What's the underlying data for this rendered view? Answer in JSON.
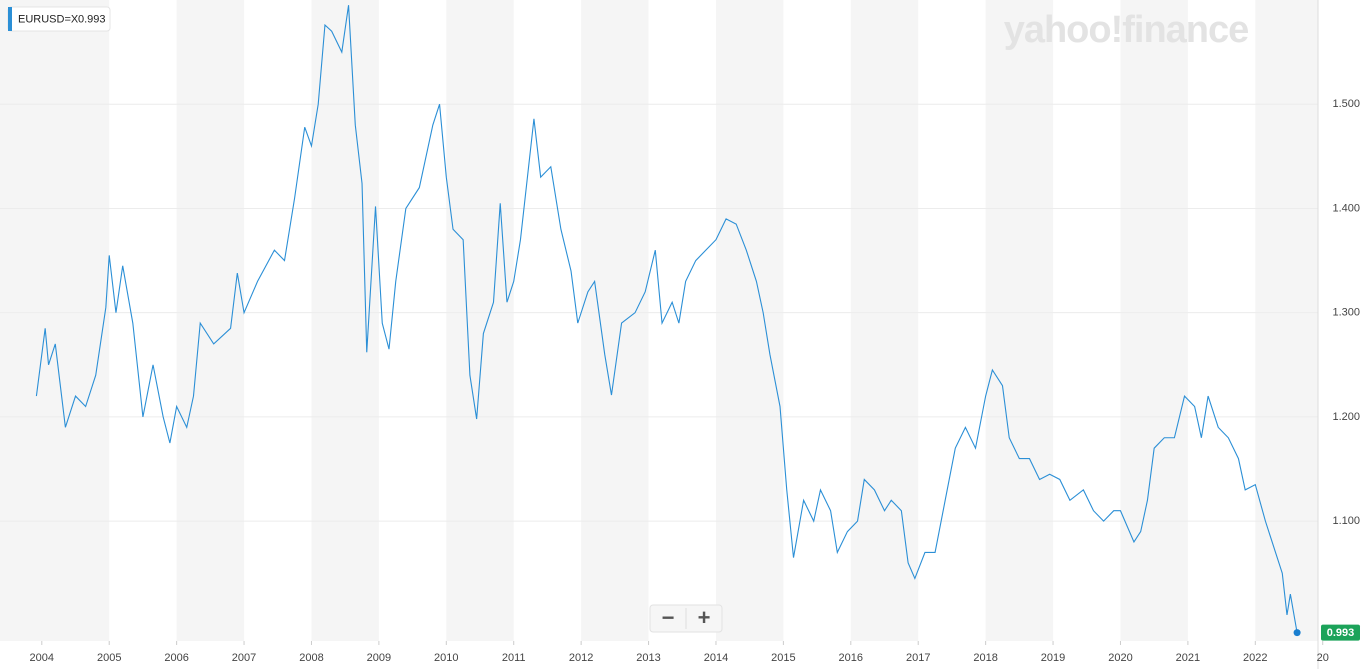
{
  "chart_data": {
    "type": "line",
    "watermark": "yahoo!finance",
    "zoom_controls": [
      "−",
      "+"
    ],
    "x": [
      2003.92,
      2004.05,
      2004.1,
      2004.2,
      2004.35,
      2004.5,
      2004.65,
      2004.8,
      2004.95,
      2005.0,
      2005.1,
      2005.2,
      2005.35,
      2005.5,
      2005.65,
      2005.8,
      2005.9,
      2006.0,
      2006.15,
      2006.25,
      2006.35,
      2006.55,
      2006.8,
      2006.9,
      2007.0,
      2007.2,
      2007.45,
      2007.6,
      2007.75,
      2007.9,
      2008.0,
      2008.1,
      2008.2,
      2008.3,
      2008.45,
      2008.55,
      2008.65,
      2008.75,
      2008.82,
      2008.95,
      2009.05,
      2009.15,
      2009.25,
      2009.4,
      2009.6,
      2009.8,
      2009.9,
      2010.0,
      2010.1,
      2010.25,
      2010.35,
      2010.45,
      2010.55,
      2010.7,
      2010.8,
      2010.9,
      2011.0,
      2011.1,
      2011.3,
      2011.4,
      2011.55,
      2011.7,
      2011.85,
      2011.95,
      2012.1,
      2012.2,
      2012.35,
      2012.45,
      2012.6,
      2012.8,
      2012.95,
      2013.1,
      2013.2,
      2013.35,
      2013.45,
      2013.55,
      2013.7,
      2013.85,
      2014.0,
      2014.15,
      2014.3,
      2014.45,
      2014.6,
      2014.7,
      2014.8,
      2014.95,
      2015.05,
      2015.15,
      2015.3,
      2015.45,
      2015.55,
      2015.7,
      2015.8,
      2015.95,
      2016.1,
      2016.2,
      2016.35,
      2016.5,
      2016.6,
      2016.75,
      2016.85,
      2016.95,
      2017.1,
      2017.25,
      2017.4,
      2017.55,
      2017.7,
      2017.85,
      2018.0,
      2018.1,
      2018.25,
      2018.35,
      2018.5,
      2018.65,
      2018.8,
      2018.95,
      2019.1,
      2019.25,
      2019.45,
      2019.6,
      2019.75,
      2019.9,
      2020.0,
      2020.2,
      2020.3,
      2020.4,
      2020.5,
      2020.65,
      2020.8,
      2020.95,
      2021.1,
      2021.2,
      2021.3,
      2021.45,
      2021.6,
      2021.75,
      2021.85,
      2022.0,
      2022.15,
      2022.3,
      2022.4,
      2022.47,
      2022.52,
      2022.62
    ],
    "series": [
      {
        "name": "EURUSD=X",
        "color": "#2b8fd6",
        "values": [
          1.22,
          1.285,
          1.25,
          1.27,
          1.19,
          1.22,
          1.21,
          1.24,
          1.305,
          1.355,
          1.3,
          1.345,
          1.29,
          1.2,
          1.25,
          1.2,
          1.175,
          1.21,
          1.19,
          1.22,
          1.29,
          1.27,
          1.285,
          1.338,
          1.3,
          1.33,
          1.36,
          1.35,
          1.41,
          1.478,
          1.46,
          1.5,
          1.576,
          1.57,
          1.55,
          1.595,
          1.48,
          1.424,
          1.262,
          1.402,
          1.29,
          1.265,
          1.33,
          1.4,
          1.42,
          1.48,
          1.5,
          1.43,
          1.38,
          1.37,
          1.24,
          1.198,
          1.28,
          1.31,
          1.405,
          1.31,
          1.33,
          1.37,
          1.486,
          1.43,
          1.44,
          1.38,
          1.34,
          1.29,
          1.32,
          1.33,
          1.26,
          1.221,
          1.29,
          1.3,
          1.32,
          1.36,
          1.29,
          1.31,
          1.29,
          1.33,
          1.35,
          1.36,
          1.37,
          1.39,
          1.385,
          1.36,
          1.33,
          1.3,
          1.26,
          1.21,
          1.13,
          1.065,
          1.12,
          1.1,
          1.13,
          1.11,
          1.07,
          1.09,
          1.1,
          1.14,
          1.13,
          1.11,
          1.12,
          1.11,
          1.06,
          1.045,
          1.07,
          1.07,
          1.12,
          1.17,
          1.19,
          1.17,
          1.22,
          1.245,
          1.23,
          1.18,
          1.16,
          1.16,
          1.14,
          1.145,
          1.14,
          1.12,
          1.13,
          1.11,
          1.1,
          1.11,
          1.11,
          1.08,
          1.09,
          1.12,
          1.17,
          1.18,
          1.18,
          1.22,
          1.21,
          1.18,
          1.22,
          1.19,
          1.18,
          1.16,
          1.13,
          1.135,
          1.1,
          1.07,
          1.05,
          1.01,
          1.03,
          0.993
        ]
      }
    ],
    "xlim": [
      2003.38,
      2022.93
    ],
    "xticks": [
      2004,
      2005,
      2006,
      2007,
      2008,
      2009,
      2010,
      2011,
      2012,
      2013,
      2014,
      2015,
      2016,
      2017,
      2018,
      2019,
      2020,
      2021,
      2022,
      {
        "value": 2023,
        "label": "20"
      }
    ],
    "ylim": [
      0.985,
      1.6
    ],
    "yticks": [
      {
        "value": 1.1,
        "label": "1.100"
      },
      {
        "value": 1.2,
        "label": "1.200"
      },
      {
        "value": 1.3,
        "label": "1.300"
      },
      {
        "value": 1.4,
        "label": "1.400"
      },
      {
        "value": 1.5,
        "label": "1.500"
      }
    ],
    "grid": true
  }
}
